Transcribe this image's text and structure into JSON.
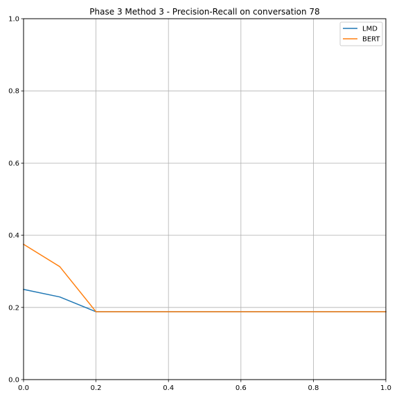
{
  "chart_data": {
    "type": "line",
    "title": "Phase 3 Method 3 - Precision-Recall on conversation 78",
    "xlabel": "",
    "ylabel": "",
    "xlim": [
      0.0,
      1.0
    ],
    "ylim": [
      0.0,
      1.0
    ],
    "x_ticks": [
      "0.0",
      "0.2",
      "0.4",
      "0.6",
      "0.8",
      "1.0"
    ],
    "y_ticks": [
      "0.0",
      "0.2",
      "0.4",
      "0.6",
      "0.8",
      "1.0"
    ],
    "grid": true,
    "legend_position": "top-right",
    "series": [
      {
        "name": "LMD",
        "color": "#1f77b4",
        "x": [
          0.0,
          0.1,
          0.2,
          0.3,
          0.4,
          0.5,
          0.6,
          0.7,
          0.8,
          0.9,
          1.0
        ],
        "y": [
          0.25,
          0.229,
          0.188,
          0.188,
          0.188,
          0.188,
          0.188,
          0.188,
          0.188,
          0.188,
          0.188
        ]
      },
      {
        "name": "BERT",
        "color": "#ff7f0e",
        "x": [
          0.0,
          0.1,
          0.2,
          0.3,
          0.4,
          0.5,
          0.6,
          0.7,
          0.8,
          0.9,
          1.0
        ],
        "y": [
          0.375,
          0.313,
          0.188,
          0.188,
          0.188,
          0.188,
          0.188,
          0.188,
          0.188,
          0.188,
          0.188
        ]
      }
    ]
  }
}
